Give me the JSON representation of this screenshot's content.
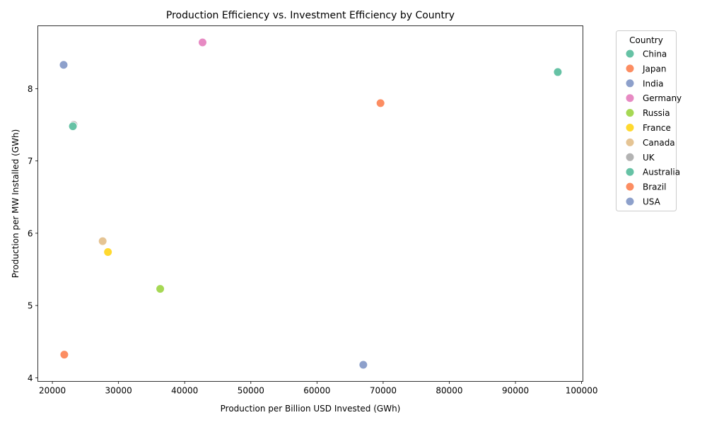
{
  "chart_data": {
    "type": "scatter",
    "title": "Production Efficiency vs. Investment Efficiency by Country",
    "xlabel": "Production per Billion USD Invested (GWh)",
    "ylabel": "Production per MW Installed (GWh)",
    "xlim": [
      17800,
      100200
    ],
    "ylim": [
      3.95,
      8.87
    ],
    "x_ticks": [
      20000,
      30000,
      40000,
      50000,
      60000,
      70000,
      80000,
      90000,
      100000
    ],
    "y_ticks": [
      4,
      5,
      6,
      7,
      8
    ],
    "grid": false,
    "legend": {
      "title": "Country",
      "position": "outside-right"
    },
    "series": [
      {
        "name": "China",
        "color": "#66c2a5",
        "x": 96400,
        "y": 8.23
      },
      {
        "name": "Japan",
        "color": "#fc8d62",
        "x": 21800,
        "y": 4.32
      },
      {
        "name": "India",
        "color": "#8da0cb",
        "x": 67000,
        "y": 4.18
      },
      {
        "name": "Germany",
        "color": "#e78ac3",
        "x": 42700,
        "y": 8.64
      },
      {
        "name": "Russia",
        "color": "#a6d854",
        "x": 36300,
        "y": 5.23
      },
      {
        "name": "France",
        "color": "#ffd92f",
        "x": 28400,
        "y": 5.74
      },
      {
        "name": "Canada",
        "color": "#e5c494",
        "x": 27600,
        "y": 5.89
      },
      {
        "name": "UK",
        "color": "#b3b3b3",
        "x": 23200,
        "y": 7.5
      },
      {
        "name": "Australia",
        "color": "#66c2a5",
        "x": 23100,
        "y": 7.48
      },
      {
        "name": "Brazil",
        "color": "#fc8d62",
        "x": 69600,
        "y": 7.8
      },
      {
        "name": "USA",
        "color": "#8da0cb",
        "x": 21700,
        "y": 8.33
      }
    ]
  }
}
